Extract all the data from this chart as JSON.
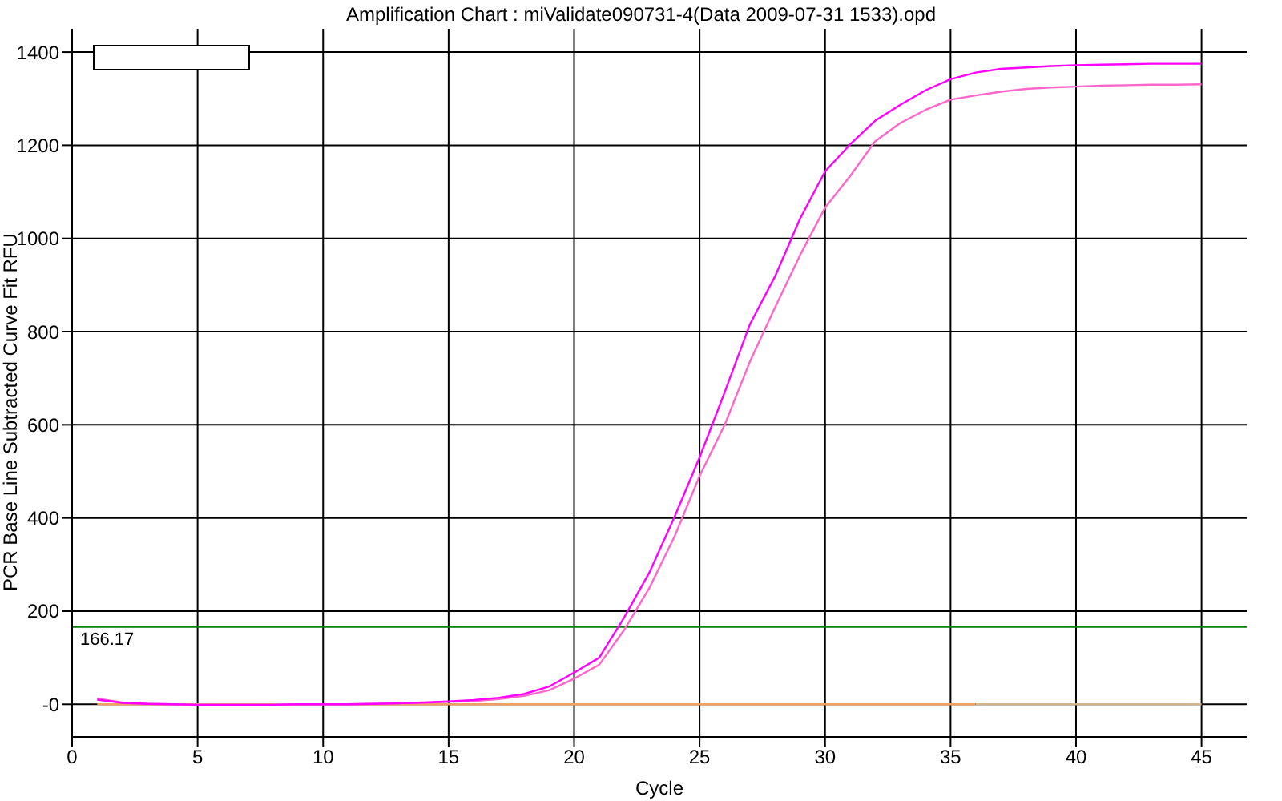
{
  "chart_data": {
    "type": "line",
    "title": "Amplification Chart : miValidate090731-4(Data 2009-07-31 1533).opd",
    "xlabel": "Cycle",
    "ylabel": "PCR Base Line Subtracted Curve Fit RFU",
    "x": [
      1,
      2,
      3,
      4,
      5,
      6,
      7,
      8,
      9,
      10,
      11,
      12,
      13,
      14,
      15,
      16,
      17,
      18,
      19,
      20,
      21,
      22,
      23,
      24,
      25,
      26,
      27,
      28,
      29,
      30,
      31,
      32,
      33,
      34,
      35,
      36,
      37,
      38,
      39,
      40,
      41,
      42,
      43,
      44,
      45
    ],
    "series": [
      {
        "color": "#d2b48c",
        "x": [
          36,
          45
        ],
        "values": [
          0,
          0
        ]
      },
      {
        "color": "#f0a060",
        "x": [
          1,
          36
        ],
        "values": [
          0,
          0
        ]
      },
      {
        "color": "#ff66cc",
        "values": [
          12,
          4,
          1,
          0,
          -1,
          -1,
          -1,
          -1,
          0,
          0,
          0,
          1,
          2,
          3,
          5,
          7,
          11,
          18,
          30,
          55,
          85,
          160,
          250,
          360,
          490,
          600,
          735,
          851,
          964,
          1066,
          1134,
          1209,
          1248,
          1276,
          1298,
          1307,
          1315,
          1321,
          1324,
          1326,
          1328,
          1329,
          1330,
          1330,
          1331
        ]
      },
      {
        "color": "#ff00ff",
        "values": [
          10,
          3,
          1,
          0,
          -1,
          -1,
          -1,
          -1,
          0,
          0,
          0,
          1,
          2,
          4,
          6,
          9,
          14,
          22,
          38,
          68,
          100,
          187,
          283,
          402,
          530,
          670,
          815,
          918,
          1042,
          1144,
          1202,
          1253,
          1287,
          1318,
          1342,
          1356,
          1364,
          1367,
          1370,
          1372,
          1373,
          1374,
          1375,
          1375,
          1375
        ]
      }
    ],
    "xlim": [
      0,
      46.8
    ],
    "xticks": [
      0,
      5,
      10,
      15,
      20,
      25,
      30,
      35,
      40,
      45
    ],
    "ylim": [
      -70,
      1450
    ],
    "yticks": [
      {
        "value": 0,
        "label": "-0"
      },
      200,
      400,
      600,
      800,
      1000,
      1200,
      1400
    ],
    "ref_lines": [
      {
        "axis": "y",
        "value": 166.17,
        "label": "166.17",
        "color": "#008000"
      }
    ],
    "grid": true,
    "marker": "none",
    "line_style": "solid"
  }
}
